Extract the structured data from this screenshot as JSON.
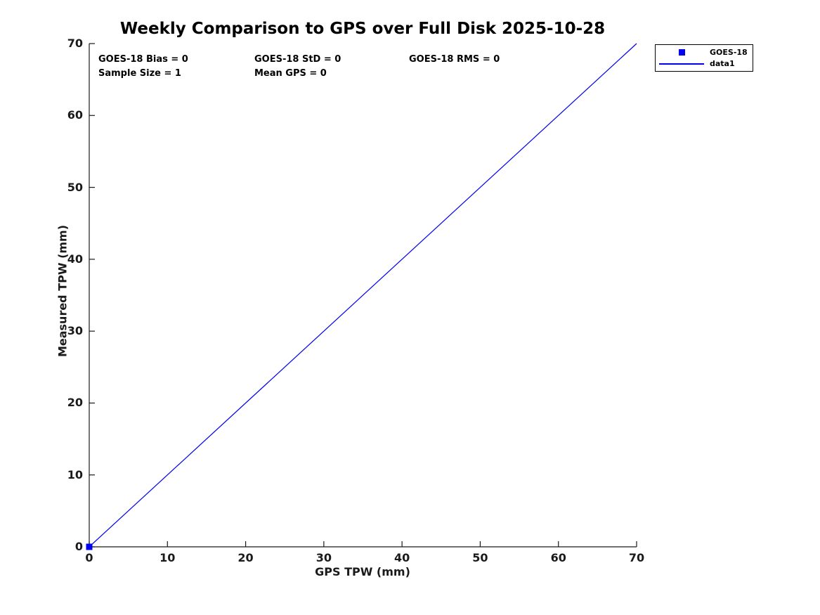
{
  "chart_data": {
    "type": "line",
    "title": "Weekly Comparison to GPS over Full Disk 2025-10-28",
    "xlabel": "GPS TPW (mm)",
    "ylabel": "Measured TPW (mm)",
    "xlim": [
      0,
      70
    ],
    "ylim": [
      0,
      70
    ],
    "xticks": [
      0,
      10,
      20,
      30,
      40,
      50,
      60,
      70
    ],
    "yticks": [
      0,
      10,
      20,
      30,
      40,
      50,
      60,
      70
    ],
    "grid": false,
    "axis_color": "#1a1a1a",
    "background_color": "#ffffff",
    "series": [
      {
        "name": "GOES-18",
        "type": "scatter",
        "marker": "square",
        "color": "#0000ee",
        "x": [
          0
        ],
        "y": [
          0
        ]
      },
      {
        "name": "data1",
        "type": "line",
        "color": "#0000ee",
        "x": [
          0,
          70
        ],
        "y": [
          0,
          70
        ]
      }
    ],
    "annotations": [
      {
        "text": "GOES-18 Bias = 0"
      },
      {
        "text": "GOES-18 StD = 0"
      },
      {
        "text": "GOES-18 RMS = 0"
      },
      {
        "text": "Sample Size = 1"
      },
      {
        "text": "Mean GPS = 0"
      }
    ],
    "stats": {
      "goes18_bias": 0,
      "goes18_std": 0,
      "goes18_rms": 0,
      "sample_size": 1,
      "mean_gps": 0
    },
    "legend": {
      "position": "northeast-outside",
      "entries": [
        {
          "label": "GOES-18",
          "glyph": "square-marker"
        },
        {
          "label": "data1",
          "glyph": "line"
        }
      ]
    }
  }
}
